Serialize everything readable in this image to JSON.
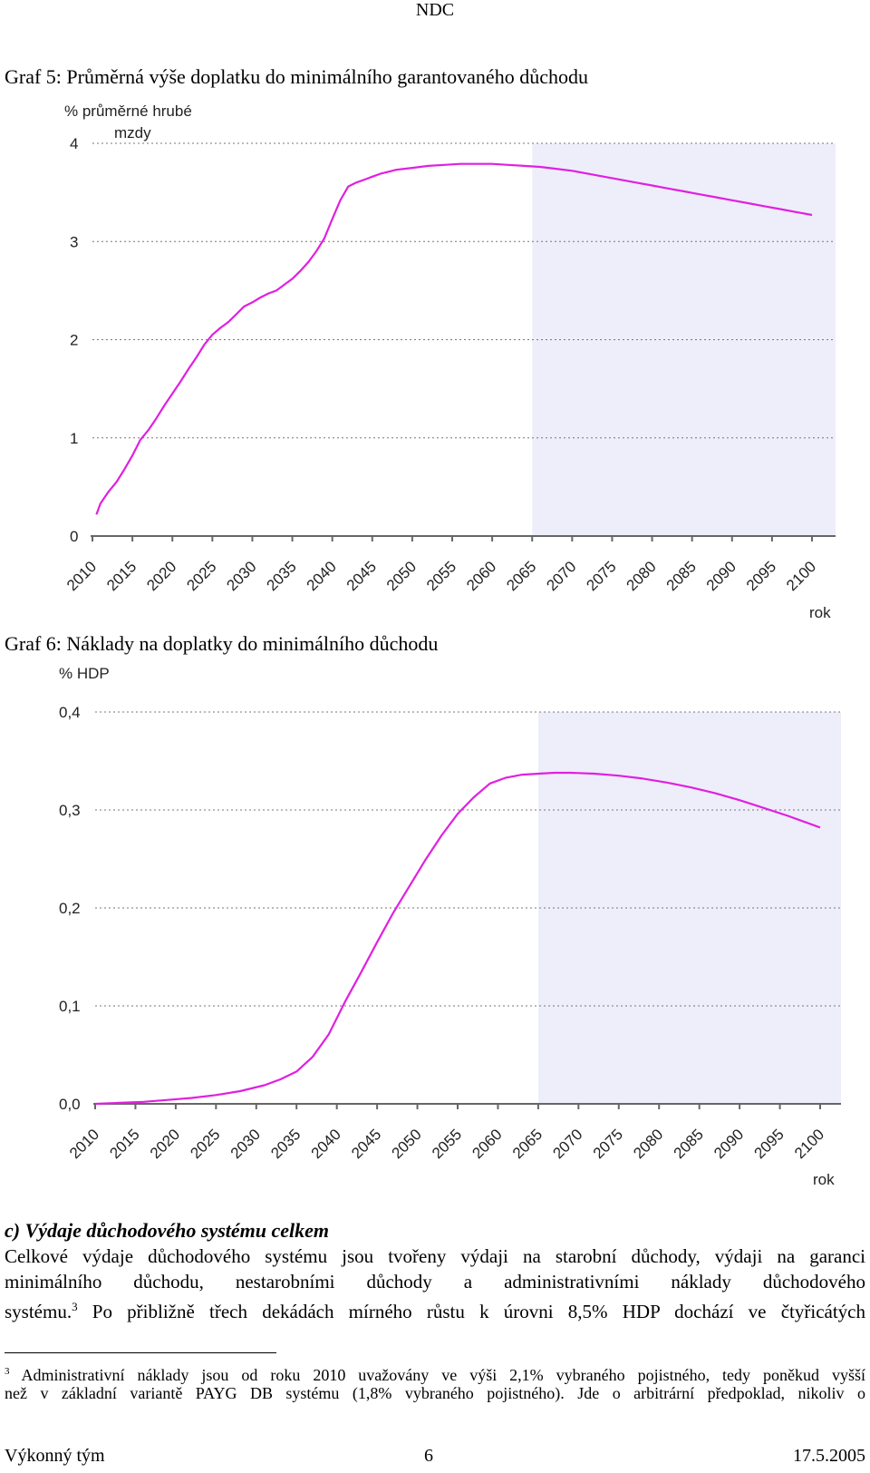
{
  "header": {
    "title": "NDC"
  },
  "graph5": {
    "title": "Graf 5: Průměrná výše doplatku do minimálního garantovaného důchodu",
    "chart_data": {
      "type": "line",
      "title": "Graf 5: Průměrná výše doplatku do minimálního garantovaného důchodu",
      "ylabel_line1": "% průměrné hrubé",
      "ylabel_line2": "mzdy",
      "xlabel": "rok",
      "ylim": [
        0,
        4
      ],
      "y_ticks": [
        "0",
        "1",
        "2",
        "3",
        "4"
      ],
      "y_tick_values": [
        0,
        1,
        2,
        3,
        4
      ],
      "x_ticks": [
        "2010",
        "2015",
        "2020",
        "2025",
        "2030",
        "2035",
        "2040",
        "2045",
        "2050",
        "2055",
        "2060",
        "2065",
        "2070",
        "2075",
        "2080",
        "2085",
        "2090",
        "2095",
        "2100"
      ],
      "xlim": [
        2010,
        2100
      ],
      "shaded_from": 2065,
      "line_color": "#e020e0",
      "shade_color": "#eeeefa",
      "series": [
        {
          "name": "doplatek",
          "x": [
            2010.5,
            2011,
            2012,
            2013,
            2014,
            2015,
            2016,
            2017,
            2018,
            2019,
            2020,
            2021,
            2022,
            2023,
            2024,
            2025,
            2026,
            2027,
            2028,
            2029,
            2030,
            2031,
            2032,
            2033,
            2034,
            2035,
            2036,
            2037,
            2038,
            2039,
            2040,
            2041,
            2042,
            2043,
            2044,
            2045,
            2046,
            2047,
            2048,
            2049,
            2050,
            2052,
            2054,
            2056,
            2058,
            2060,
            2062,
            2064,
            2066,
            2068,
            2070,
            2072,
            2074,
            2076,
            2078,
            2080,
            2082,
            2084,
            2086,
            2088,
            2090,
            2092,
            2094,
            2096,
            2098,
            2100
          ],
          "values": [
            0.22,
            0.33,
            0.45,
            0.55,
            0.68,
            0.82,
            0.98,
            1.08,
            1.2,
            1.33,
            1.45,
            1.57,
            1.7,
            1.82,
            1.95,
            2.05,
            2.12,
            2.18,
            2.26,
            2.34,
            2.38,
            2.43,
            2.47,
            2.5,
            2.56,
            2.62,
            2.7,
            2.79,
            2.9,
            3.03,
            3.23,
            3.42,
            3.56,
            3.6,
            3.63,
            3.66,
            3.69,
            3.71,
            3.73,
            3.74,
            3.75,
            3.77,
            3.78,
            3.79,
            3.79,
            3.79,
            3.78,
            3.77,
            3.76,
            3.74,
            3.72,
            3.69,
            3.66,
            3.63,
            3.6,
            3.57,
            3.54,
            3.51,
            3.48,
            3.45,
            3.42,
            3.39,
            3.36,
            3.33,
            3.3,
            3.27
          ]
        }
      ]
    }
  },
  "graph6": {
    "title": "Graf 6: Náklady na doplatky do minimálního důchodu",
    "chart_data": {
      "type": "line",
      "title": "Graf 6: Náklady na doplatky do minimálního důchodu",
      "ylabel_line1": "% HDP",
      "xlabel": "rok",
      "ylim": [
        0,
        0.4
      ],
      "y_ticks": [
        "0,0",
        "0,1",
        "0,2",
        "0,3",
        "0,4"
      ],
      "y_tick_values": [
        0,
        0.1,
        0.2,
        0.3,
        0.4
      ],
      "x_ticks": [
        "2010",
        "2015",
        "2020",
        "2025",
        "2030",
        "2035",
        "2040",
        "2045",
        "2050",
        "2055",
        "2060",
        "2065",
        "2070",
        "2075",
        "2080",
        "2085",
        "2090",
        "2095",
        "2100"
      ],
      "xlim": [
        2010,
        2100
      ],
      "shaded_from": 2065,
      "line_color": "#e020e0",
      "shade_color": "#eeeefa",
      "series": [
        {
          "name": "náklady",
          "x": [
            2010,
            2013,
            2016,
            2019,
            2022,
            2025,
            2028,
            2031,
            2033,
            2035,
            2037,
            2039,
            2041,
            2043,
            2045,
            2047,
            2049,
            2051,
            2053,
            2055,
            2057,
            2059,
            2061,
            2063,
            2065,
            2067,
            2069,
            2072,
            2075,
            2078,
            2081,
            2084,
            2087,
            2090,
            2093,
            2096,
            2100
          ],
          "values": [
            0.0,
            0.001,
            0.002,
            0.004,
            0.006,
            0.009,
            0.013,
            0.019,
            0.025,
            0.033,
            0.048,
            0.071,
            0.104,
            0.134,
            0.165,
            0.195,
            0.222,
            0.249,
            0.274,
            0.296,
            0.313,
            0.327,
            0.333,
            0.336,
            0.337,
            0.338,
            0.338,
            0.337,
            0.335,
            0.332,
            0.328,
            0.323,
            0.317,
            0.31,
            0.302,
            0.294,
            0.282
          ]
        }
      ]
    }
  },
  "section": {
    "title": "c) Výdaje důchodového systému celkem",
    "line1": "Celkové výdaje důchodového systému jsou tvořeny výdaji na starobní důchody, výdaji na garanci",
    "line2": "minimálního důchodu, nestarobními důchody a administrativními náklady důchodového",
    "line3_a": "systému.",
    "line3_sup": "3",
    "line3_b": " Po přibližně třech dekádách mírného růstu k úrovni 8,5% HDP dochází ve čtyřicátých"
  },
  "footnote": {
    "number": "3",
    "line1": " Administrativní náklady jsou od roku 2010 uvažovány ve výši 2,1% vybraného pojistného, tedy poněkud vyšší",
    "line2": "než v základní variantě PAYG DB systému (1,8% vybraného pojistného). Jde o arbitrární předpoklad, nikoliv o"
  },
  "footer": {
    "left": "Výkonný tým",
    "center": "6",
    "right": "17.5.2005"
  }
}
